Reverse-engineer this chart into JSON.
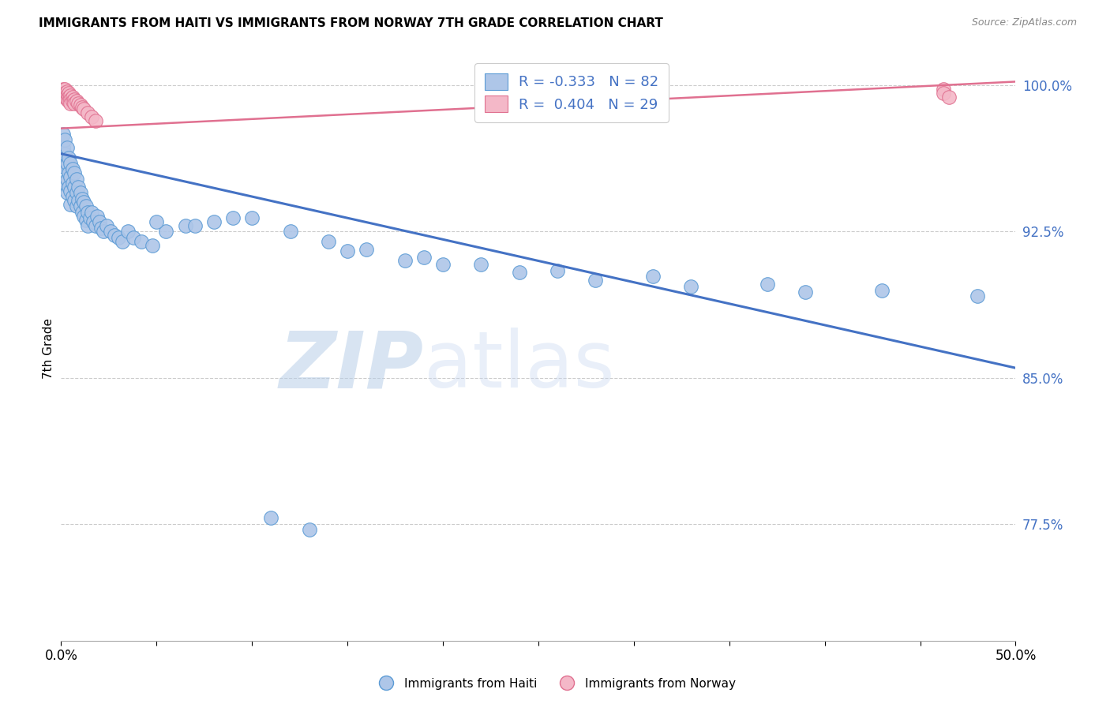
{
  "title": "IMMIGRANTS FROM HAITI VS IMMIGRANTS FROM NORWAY 7TH GRADE CORRELATION CHART",
  "source": "Source: ZipAtlas.com",
  "ylabel_label": "7th Grade",
  "xlim": [
    0.0,
    0.5
  ],
  "ylim": [
    0.715,
    1.015
  ],
  "ytick_vals": [
    0.775,
    0.85,
    0.925,
    1.0
  ],
  "ytick_labels": [
    "77.5%",
    "85.0%",
    "92.5%",
    "100.0%"
  ],
  "xtick_vals": [
    0.0,
    0.05,
    0.1,
    0.15,
    0.2,
    0.25,
    0.3,
    0.35,
    0.4,
    0.45,
    0.5
  ],
  "xtick_labels": [
    "0.0%",
    "",
    "",
    "",
    "",
    "",
    "",
    "",
    "",
    "",
    "50.0%"
  ],
  "haiti_R": -0.333,
  "haiti_N": 82,
  "norway_R": 0.404,
  "norway_N": 29,
  "haiti_color": "#aec6e8",
  "haiti_edge_color": "#5b9bd5",
  "norway_color": "#f4b8c8",
  "norway_edge_color": "#e07090",
  "haiti_line_color": "#4472c4",
  "norway_line_color": "#e07090",
  "watermark": "ZIPatlas",
  "watermark_color": "#ccddf5",
  "haiti_trend_x0": 0.0,
  "haiti_trend_y0": 0.965,
  "haiti_trend_x1": 0.5,
  "haiti_trend_y1": 0.855,
  "norway_trend_x0": 0.0,
  "norway_trend_y0": 0.978,
  "norway_trend_x1": 0.5,
  "norway_trend_y1": 1.002,
  "haiti_scatter_x": [
    0.001,
    0.001,
    0.001,
    0.002,
    0.002,
    0.002,
    0.002,
    0.003,
    0.003,
    0.003,
    0.003,
    0.004,
    0.004,
    0.004,
    0.005,
    0.005,
    0.005,
    0.005,
    0.006,
    0.006,
    0.006,
    0.007,
    0.007,
    0.007,
    0.008,
    0.008,
    0.008,
    0.009,
    0.009,
    0.01,
    0.01,
    0.011,
    0.011,
    0.012,
    0.012,
    0.013,
    0.013,
    0.014,
    0.014,
    0.015,
    0.016,
    0.017,
    0.018,
    0.019,
    0.02,
    0.021,
    0.022,
    0.024,
    0.026,
    0.028,
    0.03,
    0.032,
    0.035,
    0.038,
    0.042,
    0.048,
    0.055,
    0.065,
    0.08,
    0.1,
    0.12,
    0.14,
    0.16,
    0.19,
    0.22,
    0.26,
    0.31,
    0.37,
    0.43,
    0.48,
    0.15,
    0.18,
    0.2,
    0.24,
    0.28,
    0.33,
    0.39,
    0.05,
    0.07,
    0.09,
    0.11,
    0.13
  ],
  "haiti_scatter_y": [
    0.975,
    0.968,
    0.96,
    0.972,
    0.965,
    0.958,
    0.95,
    0.968,
    0.96,
    0.952,
    0.945,
    0.963,
    0.955,
    0.948,
    0.96,
    0.953,
    0.946,
    0.939,
    0.957,
    0.95,
    0.943,
    0.955,
    0.948,
    0.941,
    0.952,
    0.945,
    0.938,
    0.948,
    0.941,
    0.945,
    0.938,
    0.942,
    0.935,
    0.94,
    0.933,
    0.938,
    0.931,
    0.935,
    0.928,
    0.932,
    0.935,
    0.93,
    0.928,
    0.933,
    0.93,
    0.927,
    0.925,
    0.928,
    0.925,
    0.923,
    0.922,
    0.92,
    0.925,
    0.922,
    0.92,
    0.918,
    0.925,
    0.928,
    0.93,
    0.932,
    0.925,
    0.92,
    0.916,
    0.912,
    0.908,
    0.905,
    0.902,
    0.898,
    0.895,
    0.892,
    0.915,
    0.91,
    0.908,
    0.904,
    0.9,
    0.897,
    0.894,
    0.93,
    0.928,
    0.932,
    0.778,
    0.772
  ],
  "norway_scatter_x": [
    0.001,
    0.001,
    0.002,
    0.002,
    0.002,
    0.003,
    0.003,
    0.003,
    0.004,
    0.004,
    0.004,
    0.005,
    0.005,
    0.005,
    0.006,
    0.006,
    0.007,
    0.007,
    0.008,
    0.009,
    0.01,
    0.011,
    0.012,
    0.014,
    0.016,
    0.018,
    0.462,
    0.462,
    0.465
  ],
  "norway_scatter_y": [
    0.998,
    0.996,
    0.998,
    0.996,
    0.994,
    0.997,
    0.995,
    0.993,
    0.996,
    0.994,
    0.992,
    0.995,
    0.993,
    0.991,
    0.994,
    0.992,
    0.993,
    0.991,
    0.992,
    0.991,
    0.99,
    0.989,
    0.988,
    0.986,
    0.984,
    0.982,
    0.998,
    0.996,
    0.994
  ]
}
